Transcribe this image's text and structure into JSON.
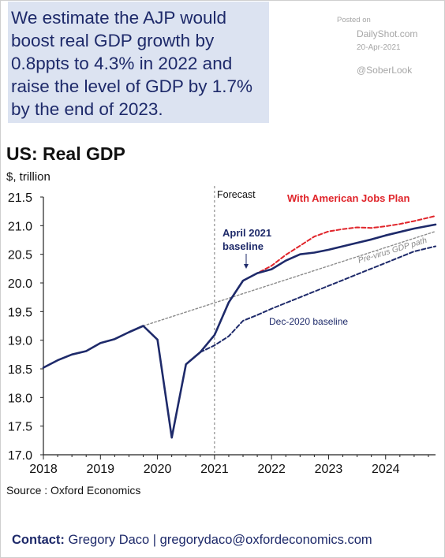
{
  "headline": "We estimate the AJP would\nboost real GDP growth by\n0.8ppts to 4.3% in 2022 and\nraise the level of GDP by 1.7%\nby the end of 2023.",
  "watermark": {
    "posted": "Posted on",
    "site": "DailyShot.com",
    "date": "20-Apr-2021",
    "handle": "@SoberLook"
  },
  "source": "Source : Oxford Economics",
  "contact": {
    "label": "Contact:",
    "text": "Gregory Daco | gregorydaco@oxfordeconomics.com"
  },
  "colors": {
    "headline_bg": "#dce3f1",
    "navy": "#1e2a6a",
    "red": "#e0242a",
    "gray": "#8c8c8c"
  },
  "chart_data": {
    "type": "line",
    "title": "US: Real GDP",
    "ylabel": "$, trillion",
    "ylim": [
      17.0,
      21.5
    ],
    "yticks": [
      17.0,
      17.5,
      18.0,
      18.5,
      19.0,
      19.5,
      20.0,
      20.5,
      21.0,
      21.5
    ],
    "xlim": [
      2018.0,
      2024.875
    ],
    "xticks": [
      "2018",
      "2019",
      "2020",
      "2021",
      "2022",
      "2023",
      "2024"
    ],
    "grid": false,
    "series": [
      {
        "name": "April 2021 baseline",
        "style": "solid",
        "color": "#1e2a6a",
        "points": [
          [
            2018.0,
            18.52
          ],
          [
            2018.25,
            18.65
          ],
          [
            2018.5,
            18.75
          ],
          [
            2018.75,
            18.81
          ],
          [
            2019.0,
            18.95
          ],
          [
            2019.25,
            19.02
          ],
          [
            2019.5,
            19.14
          ],
          [
            2019.75,
            19.25
          ],
          [
            2020.0,
            19.01
          ],
          [
            2020.25,
            17.3
          ],
          [
            2020.5,
            18.58
          ],
          [
            2020.75,
            18.79
          ],
          [
            2021.0,
            19.09
          ],
          [
            2021.25,
            19.66
          ],
          [
            2021.5,
            20.04
          ],
          [
            2021.75,
            20.17
          ],
          [
            2022.0,
            20.24
          ],
          [
            2022.25,
            20.39
          ],
          [
            2022.5,
            20.5
          ],
          [
            2022.75,
            20.53
          ],
          [
            2023.0,
            20.58
          ],
          [
            2023.25,
            20.64
          ],
          [
            2023.5,
            20.7
          ],
          [
            2023.75,
            20.76
          ],
          [
            2024.0,
            20.83
          ],
          [
            2024.25,
            20.89
          ],
          [
            2024.5,
            20.95
          ],
          [
            2024.875,
            21.02
          ]
        ]
      },
      {
        "name": "With American Jobs Plan",
        "style": "dashed",
        "color": "#e0242a",
        "points": [
          [
            2021.5,
            20.04
          ],
          [
            2021.75,
            20.17
          ],
          [
            2022.0,
            20.3
          ],
          [
            2022.25,
            20.49
          ],
          [
            2022.5,
            20.65
          ],
          [
            2022.75,
            20.81
          ],
          [
            2023.0,
            20.9
          ],
          [
            2023.25,
            20.94
          ],
          [
            2023.5,
            20.97
          ],
          [
            2023.75,
            20.96
          ],
          [
            2024.0,
            20.99
          ],
          [
            2024.25,
            21.03
          ],
          [
            2024.5,
            21.08
          ],
          [
            2024.875,
            21.17
          ]
        ]
      },
      {
        "name": "Pre-virus GDP path",
        "style": "dotted",
        "color": "#8c8c8c",
        "points": [
          [
            2019.75,
            19.25
          ],
          [
            2024.875,
            20.9
          ]
        ]
      },
      {
        "name": "Dec-2020 baseline",
        "style": "dashed",
        "color": "#1e2a6a",
        "points": [
          [
            2020.75,
            18.79
          ],
          [
            2021.0,
            18.91
          ],
          [
            2021.25,
            19.07
          ],
          [
            2021.5,
            19.34
          ],
          [
            2021.75,
            19.44
          ],
          [
            2022.0,
            19.55
          ],
          [
            2022.25,
            19.65
          ],
          [
            2022.5,
            19.75
          ],
          [
            2022.75,
            19.85
          ],
          [
            2023.0,
            19.95
          ],
          [
            2023.25,
            20.05
          ],
          [
            2023.5,
            20.15
          ],
          [
            2023.75,
            20.25
          ],
          [
            2024.0,
            20.35
          ],
          [
            2024.25,
            20.45
          ],
          [
            2024.5,
            20.55
          ],
          [
            2024.875,
            20.64
          ]
        ]
      }
    ],
    "annotations": [
      {
        "text": "Forecast",
        "x": 2021.0
      },
      {
        "text": "With American Jobs Plan"
      },
      {
        "text": "April 2021"
      },
      {
        "text": "baseline"
      },
      {
        "text": "Pre-virus GDP path"
      },
      {
        "text": "Dec-2020 baseline"
      }
    ]
  }
}
